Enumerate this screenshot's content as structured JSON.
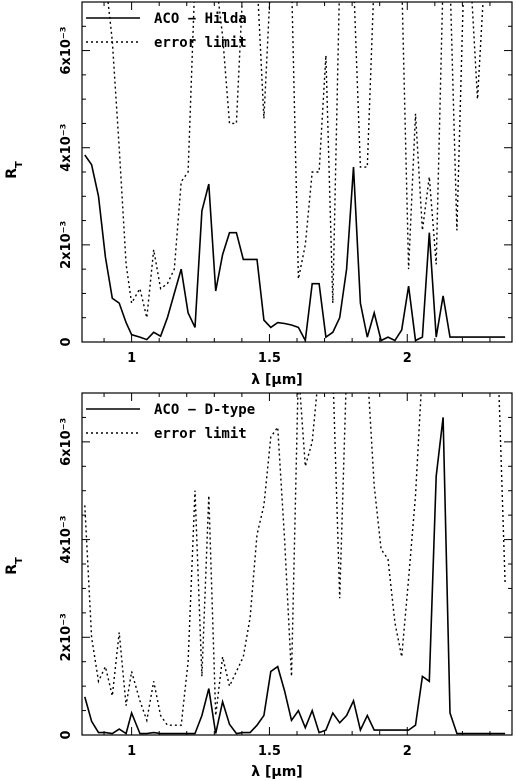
{
  "chart_data": [
    {
      "type": "line",
      "xlim": [
        0.82,
        2.38
      ],
      "ylim": [
        0,
        0.007
      ],
      "grid": false,
      "legend_position": "top-left",
      "xlabel": "λ [μm]",
      "ylabel": "R_T",
      "x_ticks": [
        1,
        1.5,
        2
      ],
      "x_tick_labels": [
        "1",
        "1.5",
        "2"
      ],
      "y_ticks": [
        0,
        0.002,
        0.004,
        0.006
      ],
      "y_tick_labels": [
        "0",
        "2x10⁻³",
        "4x10⁻³",
        "6x10⁻³"
      ],
      "series": [
        {
          "name": "ACO − Hilda",
          "style": "solid",
          "x": [
            0.83,
            0.85,
            0.88,
            0.9,
            0.93,
            0.95,
            0.98,
            1.0,
            1.03,
            1.05,
            1.08,
            1.1,
            1.13,
            1.15,
            1.18,
            1.2,
            1.23,
            1.25,
            1.28,
            1.3,
            1.33,
            1.35,
            1.38,
            1.4,
            1.43,
            1.45,
            1.48,
            1.5,
            1.53,
            1.55,
            1.58,
            1.6,
            1.63,
            1.65,
            1.68,
            1.7,
            1.73,
            1.75,
            1.78,
            1.8,
            1.83,
            1.85,
            1.88,
            1.9,
            1.93,
            1.95,
            1.98,
            2.0,
            2.03,
            2.05,
            2.08,
            2.1,
            2.13,
            2.15,
            2.18,
            2.2,
            2.23,
            2.25,
            2.28,
            2.3,
            2.33,
            2.35
          ],
          "y": [
            0.00385,
            0.00365,
            0.003,
            0.00175,
            0.0009,
            0.0008,
            0.0004,
            0.00015,
            0.0001,
            5e-05,
            0.0002,
            0.00012,
            0.0005,
            0.001,
            0.0015,
            0.0006,
            0.0003,
            0.0027,
            0.00325,
            0.00105,
            0.0018,
            0.00225,
            0.00225,
            0.0017,
            0.0017,
            0.0017,
            0.00045,
            0.0003,
            0.0004,
            0.00038,
            0.00035,
            0.0003,
            3e-05,
            0.0012,
            0.0012,
            0.0001,
            0.0002,
            0.0005,
            0.0015,
            0.0036,
            0.0008,
            0.0001,
            0.0006,
            3e-05,
            0.0001,
            3e-05,
            0.00025,
            0.00115,
            3e-05,
            0.0001,
            0.00225,
            0.0001,
            0.00095,
            0.0001,
            0.0001,
            0.0001,
            0.0001,
            0.0001,
            0.0001,
            0.0001,
            0.0001,
            0.0001
          ],
          "x_exact": [
            0.83,
            0.855,
            0.88,
            0.905,
            0.93,
            0.955,
            0.98,
            1.0,
            1.03,
            1.055,
            1.08,
            1.105,
            1.13,
            1.155,
            1.18,
            1.205,
            1.23,
            1.255,
            1.28,
            1.305,
            1.33,
            1.355,
            1.38,
            1.405,
            1.43,
            1.455,
            1.48,
            1.505,
            1.53,
            1.555,
            1.58,
            1.605,
            1.63,
            1.655,
            1.68,
            1.705,
            1.73,
            1.755,
            1.78,
            1.805,
            1.83,
            1.855,
            1.88,
            1.905,
            1.93,
            1.955,
            1.98,
            2.005,
            2.03,
            2.055,
            2.08,
            2.105,
            2.13,
            2.155,
            2.18,
            2.205,
            2.23,
            2.255,
            2.28,
            2.305,
            2.33,
            2.355
          ]
        },
        {
          "name": "error limit",
          "style": "dotted",
          "x": [
            0.83,
            0.855,
            0.88,
            0.905,
            0.93,
            0.955,
            0.98,
            1.0,
            1.03,
            1.055,
            1.08,
            1.105,
            1.13,
            1.155,
            1.18,
            1.205,
            1.23,
            1.255,
            1.28,
            1.305,
            1.33,
            1.355,
            1.38,
            1.405,
            1.43,
            1.455,
            1.48,
            1.505,
            1.53,
            1.555,
            1.58,
            1.605,
            1.63,
            1.655,
            1.68,
            1.705,
            1.73,
            1.755,
            1.78,
            1.805,
            1.83,
            1.855,
            1.88,
            1.905,
            1.93,
            1.955,
            1.98,
            2.005,
            2.03,
            2.055,
            2.08,
            2.105,
            2.13,
            2.155,
            2.18,
            2.205,
            2.23,
            2.255,
            2.28,
            2.305,
            2.33,
            2.355
          ],
          "y": [
            0.0075,
            0.0075,
            0.0075,
            0.0075,
            0.0062,
            0.004,
            0.0016,
            0.0008,
            0.0011,
            0.0005,
            0.0019,
            0.0011,
            0.0012,
            0.0015,
            0.0033,
            0.0035,
            0.0075,
            0.0075,
            0.0075,
            0.0075,
            0.0063,
            0.0045,
            0.0045,
            0.0075,
            0.0075,
            0.0075,
            0.0046,
            0.0075,
            0.0075,
            0.0075,
            0.0075,
            0.0013,
            0.002,
            0.0035,
            0.0035,
            0.0059,
            0.0008,
            0.0075,
            0.0075,
            0.0075,
            0.0036,
            0.0036,
            0.0075,
            0.0075,
            0.0075,
            0.0075,
            0.0075,
            0.0015,
            0.0047,
            0.0023,
            0.0034,
            0.0016,
            0.0075,
            0.0075,
            0.0023,
            0.0075,
            0.0075,
            0.005,
            0.0075,
            0.0075,
            0.0075,
            0.0075
          ]
        }
      ]
    },
    {
      "type": "line",
      "xlim": [
        0.82,
        2.38
      ],
      "ylim": [
        0,
        0.007
      ],
      "grid": false,
      "legend_position": "top-left",
      "xlabel": "λ [μm]",
      "ylabel": "R_T",
      "x_ticks": [
        1,
        1.5,
        2
      ],
      "x_tick_labels": [
        "1",
        "1.5",
        "2"
      ],
      "y_ticks": [
        0,
        0.002,
        0.004,
        0.006
      ],
      "y_tick_labels": [
        "0",
        "2x10⁻³",
        "4x10⁻³",
        "6x10⁻³"
      ],
      "series": [
        {
          "name": "ACO − D-type",
          "style": "solid",
          "x": [
            0.83,
            0.855,
            0.88,
            0.905,
            0.93,
            0.955,
            0.98,
            1.0,
            1.03,
            1.055,
            1.08,
            1.105,
            1.13,
            1.155,
            1.18,
            1.205,
            1.23,
            1.255,
            1.28,
            1.305,
            1.33,
            1.355,
            1.38,
            1.405,
            1.43,
            1.455,
            1.48,
            1.505,
            1.53,
            1.555,
            1.58,
            1.605,
            1.63,
            1.655,
            1.68,
            1.705,
            1.73,
            1.755,
            1.78,
            1.805,
            1.83,
            1.855,
            1.88,
            1.905,
            1.93,
            1.955,
            1.98,
            2.005,
            2.03,
            2.055,
            2.08,
            2.105,
            2.13,
            2.155,
            2.18,
            2.205,
            2.23,
            2.255,
            2.28,
            2.305,
            2.33,
            2.355
          ],
          "y": [
            0.00078,
            0.00028,
            5e-05,
            5e-05,
            3e-05,
            0.00012,
            3e-05,
            0.00045,
            3e-05,
            3e-05,
            5e-05,
            3e-05,
            3e-05,
            3e-05,
            3e-05,
            3e-05,
            3e-05,
            0.0004,
            0.00095,
            3e-05,
            0.00068,
            0.00022,
            3e-05,
            5e-05,
            5e-05,
            0.0002,
            0.0004,
            0.0013,
            0.0014,
            0.0009,
            0.0003,
            0.0005,
            0.00015,
            0.0005,
            5e-05,
            0.0001,
            0.00045,
            0.00025,
            0.0004,
            0.0007,
            0.0001,
            0.0004,
            0.0001,
            0.0001,
            0.0001,
            0.0001,
            0.0001,
            0.0001,
            0.0002,
            0.0012,
            0.0011,
            0.0053,
            0.0065,
            0.00045,
            3e-05,
            3e-05,
            3e-05,
            3e-05,
            3e-05,
            3e-05,
            3e-05,
            3e-05
          ]
        },
        {
          "name": "error limit",
          "style": "dotted",
          "x": [
            0.83,
            0.855,
            0.88,
            0.905,
            0.93,
            0.955,
            0.98,
            1.0,
            1.03,
            1.055,
            1.08,
            1.105,
            1.13,
            1.155,
            1.18,
            1.205,
            1.23,
            1.255,
            1.28,
            1.305,
            1.33,
            1.355,
            1.38,
            1.405,
            1.43,
            1.455,
            1.48,
            1.505,
            1.53,
            1.555,
            1.58,
            1.605,
            1.63,
            1.655,
            1.68,
            1.705,
            1.73,
            1.755,
            1.78,
            1.805,
            1.83,
            1.855,
            1.88,
            1.905,
            1.93,
            1.955,
            1.98,
            2.005,
            2.03,
            2.055,
            2.08,
            2.105,
            2.13,
            2.155,
            2.18,
            2.205,
            2.23,
            2.255,
            2.28,
            2.305,
            2.33,
            2.355
          ],
          "y": [
            0.0047,
            0.002,
            0.0011,
            0.0014,
            0.0008,
            0.0021,
            0.0006,
            0.0013,
            0.0007,
            0.0003,
            0.0011,
            0.0004,
            0.0002,
            0.0002,
            0.0002,
            0.0015,
            0.005,
            0.0012,
            0.0049,
            0.0004,
            0.0016,
            0.001,
            0.0013,
            0.0016,
            0.0024,
            0.0041,
            0.0047,
            0.0061,
            0.0063,
            0.004,
            0.0012,
            0.0075,
            0.0055,
            0.006,
            0.0075,
            0.0075,
            0.0075,
            0.0028,
            0.0075,
            0.0075,
            0.0075,
            0.0075,
            0.0051,
            0.0038,
            0.0036,
            0.0023,
            0.0016,
            0.0032,
            0.0049,
            0.0075,
            0.0075,
            0.0075,
            0.0075,
            0.0075,
            0.0075,
            0.0075,
            0.0075,
            0.0075,
            0.0075,
            0.0075,
            0.0075,
            0.0031
          ]
        }
      ]
    }
  ]
}
